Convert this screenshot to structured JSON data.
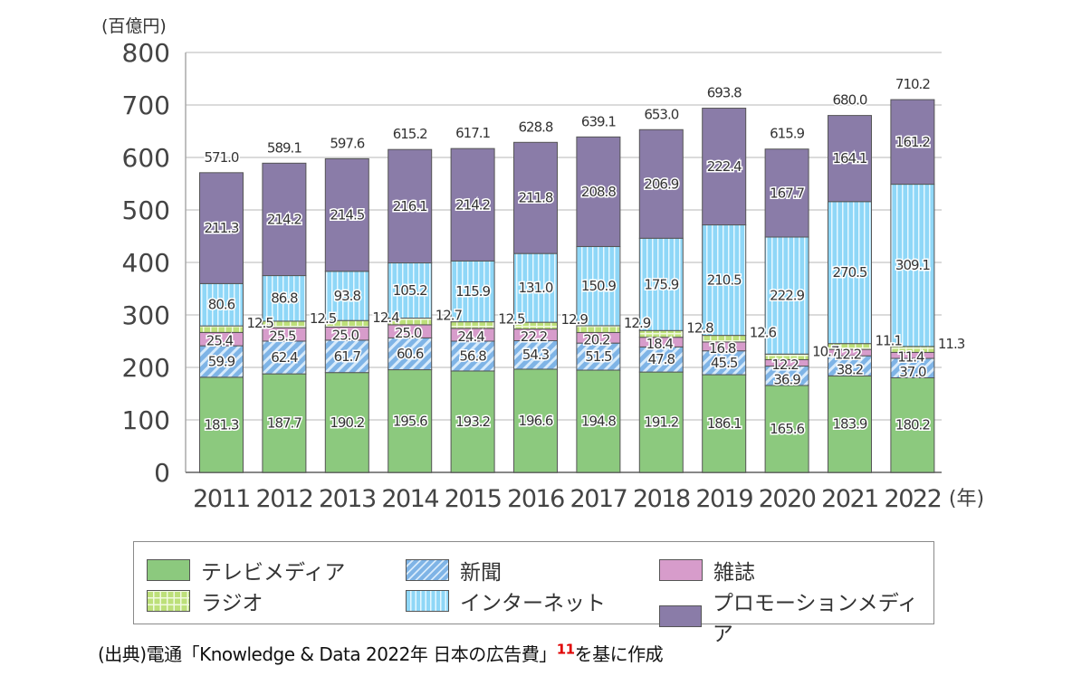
{
  "chart_data": {
    "type": "bar",
    "stacked": true,
    "title": "",
    "ylabel": "(百億円)",
    "xlabel": "(年)",
    "ylim": [
      0,
      800
    ],
    "yticks": [
      0,
      100,
      200,
      300,
      400,
      500,
      600,
      700,
      800
    ],
    "grid": true,
    "legend_position": "bottom",
    "categories": [
      "2011",
      "2012",
      "2013",
      "2014",
      "2015",
      "2016",
      "2017",
      "2018",
      "2019",
      "2020",
      "2021",
      "2022"
    ],
    "series": [
      {
        "name": "テレビメディア",
        "color": "#8cc97e",
        "pattern": "solid",
        "values": [
          181.3,
          187.7,
          190.2,
          195.6,
          193.2,
          196.6,
          194.8,
          191.2,
          186.1,
          165.6,
          183.9,
          180.2
        ]
      },
      {
        "name": "新聞",
        "color": "#7fb4e6",
        "pattern": "diagonal",
        "values": [
          59.9,
          62.4,
          61.7,
          60.6,
          56.8,
          54.3,
          51.5,
          47.8,
          45.5,
          36.9,
          38.2,
          37.0
        ]
      },
      {
        "name": "雑誌",
        "color": "#d79ccb",
        "pattern": "solid",
        "values": [
          25.4,
          25.5,
          25.0,
          25.0,
          24.4,
          22.2,
          20.2,
          18.4,
          16.8,
          12.2,
          12.2,
          11.4
        ]
      },
      {
        "name": "ラジオ",
        "color": "#bde07a",
        "pattern": "grid",
        "values": [
          12.5,
          12.5,
          12.4,
          12.7,
          12.5,
          12.9,
          12.9,
          12.8,
          12.6,
          10.7,
          11.1,
          11.3
        ]
      },
      {
        "name": "インターネット",
        "color": "#8fd7f7",
        "pattern": "vertical",
        "values": [
          80.6,
          86.8,
          93.8,
          105.2,
          115.9,
          131.0,
          150.9,
          175.9,
          210.5,
          222.9,
          270.5,
          309.1
        ]
      },
      {
        "name": "プロモーションメディア",
        "color": "#8a7ca8",
        "pattern": "solid",
        "values": [
          211.3,
          214.2,
          214.5,
          216.1,
          214.2,
          211.8,
          208.8,
          206.9,
          222.4,
          167.7,
          164.1,
          161.2
        ]
      }
    ],
    "totals": [
      "571.0",
      "589.1",
      "597.6",
      "615.2",
      "617.1",
      "628.8",
      "639.1",
      "653.0",
      "693.8",
      "615.9",
      "680.0",
      "710.2"
    ]
  },
  "legend": {
    "items": [
      {
        "label": "テレビメディア",
        "series": 0
      },
      {
        "label": "ラジオ",
        "series": 3
      },
      {
        "label": "新聞",
        "series": 1
      },
      {
        "label": "インターネット",
        "series": 4
      },
      {
        "label": "雑誌",
        "series": 2
      },
      {
        "label": "プロモーションメディア",
        "series": 5
      }
    ]
  },
  "source": {
    "text": "(出典)電通「Knowledge & Data 2022年 日本の広告費」",
    "footnote": "11",
    "suffix": "を基に作成"
  }
}
